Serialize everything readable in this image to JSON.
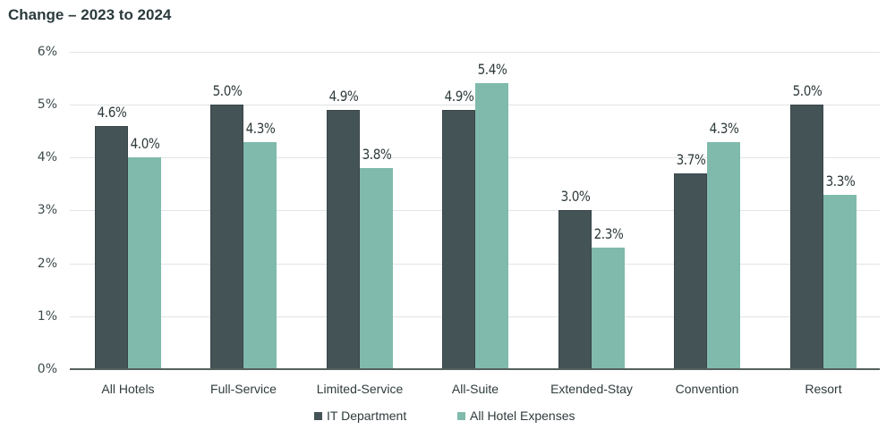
{
  "chart_data": {
    "type": "bar",
    "title": "Change – 2023 to 2024",
    "xlabel": "",
    "ylabel": "",
    "ylim": [
      0,
      6
    ],
    "y_ticks": [
      "0%",
      "1%",
      "2%",
      "3%",
      "4%",
      "5%",
      "6%"
    ],
    "grid": true,
    "legend_position": "bottom",
    "categories": [
      "All Hotels",
      "Full-Service",
      "Limited-Service",
      "All-Suite",
      "Extended-Stay",
      "Convention",
      "Resort"
    ],
    "series": [
      {
        "name": "IT Department",
        "color": "#445356",
        "values": [
          4.6,
          5.0,
          4.9,
          4.9,
          3.0,
          3.7,
          5.0
        ],
        "labels": [
          "4.6%",
          "5.0%",
          "4.9%",
          "4.9%",
          "3.0%",
          "3.7%",
          "5.0%"
        ]
      },
      {
        "name": "All Hotel Expenses",
        "color": "#80baac",
        "values": [
          4.0,
          4.3,
          3.8,
          5.4,
          2.3,
          4.3,
          3.3
        ],
        "labels": [
          "4.0%",
          "4.3%",
          "3.8%",
          "5.4%",
          "2.3%",
          "4.3%",
          "3.3%"
        ]
      }
    ]
  }
}
